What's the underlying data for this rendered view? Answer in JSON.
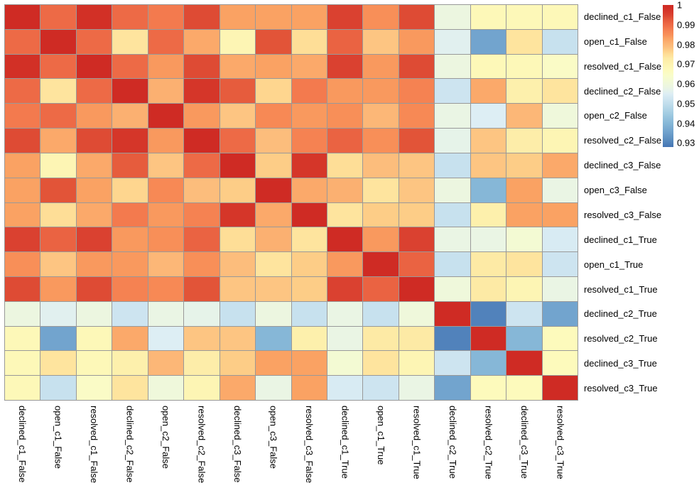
{
  "figure": {
    "background_color": "#ffffff",
    "grid_line_color": "#999999",
    "label_color": "#000000"
  },
  "chart_data": {
    "type": "heatmap",
    "title": "",
    "xlabel": "",
    "ylabel": "",
    "categories": [
      "declined_c1_False",
      "open_c1_False",
      "resolved_c1_False",
      "declined_c2_False",
      "open_c2_False",
      "resolved_c2_False",
      "declined_c3_False",
      "open_c3_False",
      "resolved_c3_False",
      "declined_c1_True",
      "open_c1_True",
      "resolved_c1_True",
      "declined_c2_True",
      "resolved_c2_True",
      "declined_c3_True",
      "resolved_c3_True"
    ],
    "matrix": [
      [
        1.0,
        0.99,
        0.998,
        0.99,
        0.988,
        0.994,
        0.983,
        0.983,
        0.983,
        0.995,
        0.985,
        0.994,
        0.959,
        0.968,
        0.968,
        0.968
      ],
      [
        0.99,
        1.0,
        0.99,
        0.974,
        0.99,
        0.982,
        0.969,
        0.993,
        0.975,
        0.991,
        0.978,
        0.984,
        0.956,
        0.936,
        0.974,
        0.951
      ],
      [
        0.998,
        0.99,
        1.0,
        0.99,
        0.984,
        0.994,
        0.982,
        0.983,
        0.982,
        0.995,
        0.984,
        0.994,
        0.959,
        0.968,
        0.968,
        0.965
      ],
      [
        0.99,
        0.974,
        0.99,
        1.0,
        0.981,
        0.997,
        0.992,
        0.976,
        0.988,
        0.984,
        0.984,
        0.987,
        0.952,
        0.982,
        0.971,
        0.974
      ],
      [
        0.988,
        0.99,
        0.984,
        0.981,
        1.0,
        0.984,
        0.978,
        0.986,
        0.984,
        0.985,
        0.98,
        0.986,
        0.958,
        0.955,
        0.98,
        0.96
      ],
      [
        0.994,
        0.982,
        0.994,
        0.997,
        0.984,
        1.0,
        0.99,
        0.979,
        0.987,
        0.991,
        0.985,
        0.993,
        0.957,
        0.978,
        0.972,
        0.969
      ],
      [
        0.983,
        0.969,
        0.982,
        0.992,
        0.978,
        0.99,
        1.0,
        0.977,
        0.997,
        0.975,
        0.979,
        0.978,
        0.951,
        0.978,
        0.977,
        0.982
      ],
      [
        0.983,
        0.993,
        0.983,
        0.976,
        0.986,
        0.979,
        0.977,
        1.0,
        0.982,
        0.981,
        0.974,
        0.978,
        0.959,
        0.94,
        0.983,
        0.958
      ],
      [
        0.983,
        0.975,
        0.982,
        0.988,
        0.984,
        0.987,
        0.997,
        0.982,
        1.0,
        0.974,
        0.977,
        0.977,
        0.951,
        0.971,
        0.983,
        0.983
      ],
      [
        0.995,
        0.991,
        0.995,
        0.984,
        0.985,
        0.991,
        0.975,
        0.981,
        0.974,
        1.0,
        0.984,
        0.995,
        0.958,
        0.958,
        0.962,
        0.954
      ],
      [
        0.985,
        0.978,
        0.984,
        0.984,
        0.98,
        0.985,
        0.979,
        0.974,
        0.977,
        0.984,
        1.0,
        0.991,
        0.951,
        0.973,
        0.974,
        0.952
      ],
      [
        0.994,
        0.984,
        0.994,
        0.987,
        0.986,
        0.993,
        0.978,
        0.978,
        0.977,
        0.995,
        0.991,
        1.0,
        0.96,
        0.973,
        0.969,
        0.958
      ],
      [
        0.959,
        0.956,
        0.959,
        0.952,
        0.958,
        0.957,
        0.951,
        0.959,
        0.951,
        0.958,
        0.951,
        0.96,
        1.0,
        0.93,
        0.952,
        0.936
      ],
      [
        0.968,
        0.936,
        0.968,
        0.982,
        0.955,
        0.978,
        0.978,
        0.94,
        0.971,
        0.958,
        0.973,
        0.973,
        0.93,
        1.0,
        0.94,
        0.967
      ],
      [
        0.968,
        0.974,
        0.968,
        0.971,
        0.98,
        0.972,
        0.977,
        0.983,
        0.983,
        0.962,
        0.974,
        0.969,
        0.952,
        0.94,
        1.0,
        0.967
      ],
      [
        0.968,
        0.951,
        0.965,
        0.974,
        0.96,
        0.969,
        0.982,
        0.958,
        0.983,
        0.954,
        0.952,
        0.958,
        0.936,
        0.967,
        0.967,
        1.0
      ]
    ],
    "colormap": "RdYlBu_r",
    "vmin": 0.928,
    "vmax": 1.0,
    "legend_position": "top-right",
    "grid": true,
    "colorbar": {
      "tick_labels": [
        "1",
        "0.99",
        "0.98",
        "0.97",
        "0.96",
        "0.95",
        "0.94",
        "0.93"
      ],
      "tick_values": [
        1.0,
        0.99,
        0.98,
        0.97,
        0.96,
        0.95,
        0.94,
        0.93
      ]
    },
    "colormap_stops": [
      [
        0.928,
        "#4575b4"
      ],
      [
        0.932,
        "#5c8fc1"
      ],
      [
        0.936,
        "#72a4ce"
      ],
      [
        0.94,
        "#86b7d7"
      ],
      [
        0.944,
        "#9cc8e0"
      ],
      [
        0.948,
        "#b5d7e8"
      ],
      [
        0.952,
        "#cde4f0"
      ],
      [
        0.955,
        "#ddeef4"
      ],
      [
        0.958,
        "#eaf5e4"
      ],
      [
        0.961,
        "#f1f9d7"
      ],
      [
        0.964,
        "#f8fccb"
      ],
      [
        0.967,
        "#fdfabc"
      ],
      [
        0.97,
        "#fdf3b0"
      ],
      [
        0.973,
        "#fdeaa5"
      ],
      [
        0.975,
        "#fede97"
      ],
      [
        0.977,
        "#fdcd87"
      ],
      [
        0.979,
        "#fcbd7c"
      ],
      [
        0.981,
        "#fbb071"
      ],
      [
        0.983,
        "#faa263"
      ],
      [
        0.985,
        "#f88f58"
      ],
      [
        0.987,
        "#f58252"
      ],
      [
        0.989,
        "#f0714a"
      ],
      [
        0.991,
        "#ea6342"
      ],
      [
        0.993,
        "#e25438"
      ],
      [
        0.995,
        "#da4130"
      ],
      [
        0.998,
        "#d23026"
      ],
      [
        1.0,
        "#cf2b24"
      ]
    ]
  }
}
